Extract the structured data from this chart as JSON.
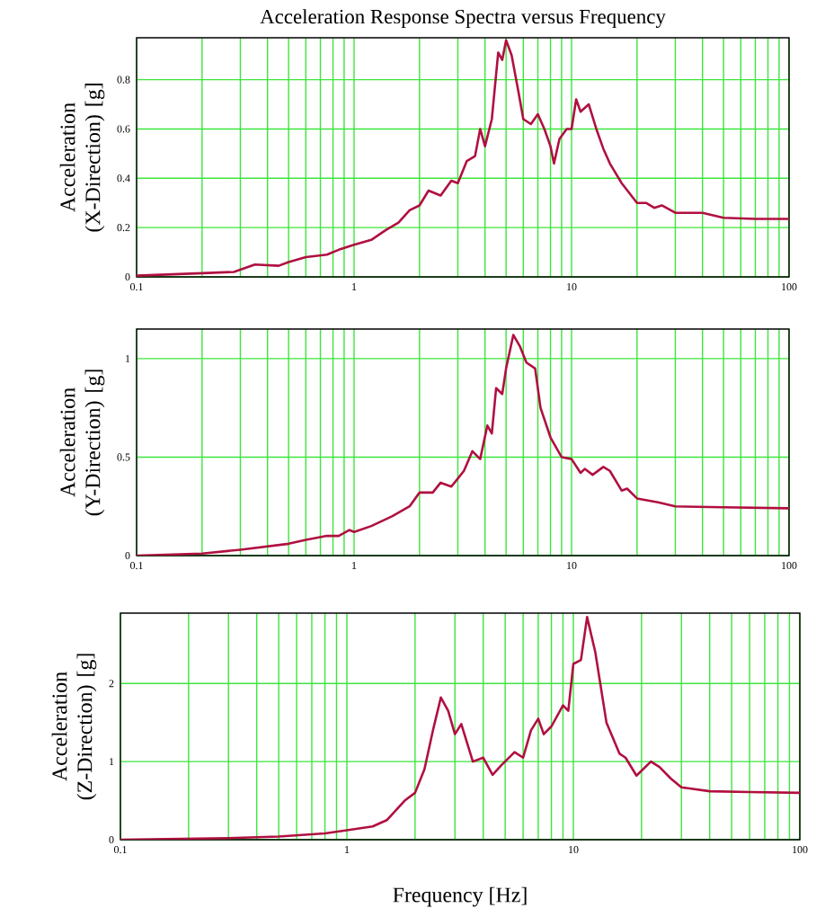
{
  "chart_data": [
    {
      "type": "line",
      "title": "Acceleration Response Spectra versus Frequency",
      "ylabel": "Acceleration (X-Direction) [g]",
      "log": "x",
      "grid": true,
      "xlim": [
        0.1,
        100
      ],
      "ylim": [
        0,
        0.97
      ],
      "xticks": [
        0.1,
        1,
        10,
        100
      ],
      "yticks": [
        0,
        0.2,
        0.4,
        0.6,
        0.8
      ],
      "series": [
        {
          "color": "#b01040",
          "x": [
            0.1,
            0.2,
            0.28,
            0.35,
            0.45,
            0.5,
            0.6,
            0.75,
            0.85,
            1.0,
            1.2,
            1.4,
            1.6,
            1.8,
            2.0,
            2.2,
            2.5,
            2.8,
            3.0,
            3.3,
            3.6,
            3.8,
            4.0,
            4.3,
            4.6,
            4.8,
            5.0,
            5.3,
            5.7,
            6.0,
            6.5,
            7.0,
            7.5,
            8.0,
            8.3,
            8.8,
            9.5,
            10.0,
            10.5,
            11.0,
            12.0,
            13.0,
            14.0,
            15,
            17,
            20,
            22,
            24,
            26,
            30,
            40,
            50,
            70,
            100
          ],
          "values": [
            0.005,
            0.015,
            0.02,
            0.05,
            0.045,
            0.06,
            0.08,
            0.09,
            0.11,
            0.13,
            0.15,
            0.19,
            0.22,
            0.27,
            0.29,
            0.35,
            0.33,
            0.39,
            0.38,
            0.47,
            0.49,
            0.6,
            0.53,
            0.64,
            0.91,
            0.88,
            0.96,
            0.9,
            0.75,
            0.64,
            0.62,
            0.66,
            0.6,
            0.53,
            0.46,
            0.56,
            0.6,
            0.6,
            0.72,
            0.67,
            0.7,
            0.6,
            0.52,
            0.46,
            0.38,
            0.3,
            0.3,
            0.28,
            0.29,
            0.26,
            0.26,
            0.24,
            0.235,
            0.235
          ]
        }
      ]
    },
    {
      "type": "line",
      "ylabel": "Acceleration (Y-Direction) [g]",
      "log": "x",
      "grid": true,
      "xlim": [
        0.1,
        100
      ],
      "ylim": [
        0,
        1.15
      ],
      "xticks": [
        0.1,
        1,
        10,
        100
      ],
      "yticks": [
        0,
        0.5,
        1
      ],
      "series": [
        {
          "color": "#b01040",
          "x": [
            0.1,
            0.2,
            0.3,
            0.5,
            0.6,
            0.75,
            0.85,
            0.95,
            1.0,
            1.2,
            1.5,
            1.8,
            2.0,
            2.3,
            2.5,
            2.8,
            3.2,
            3.5,
            3.8,
            4.1,
            4.3,
            4.5,
            4.8,
            5.0,
            5.4,
            5.8,
            6.2,
            6.8,
            7.2,
            8.0,
            9.0,
            10,
            11,
            11.5,
            12.5,
            14,
            15,
            17,
            18,
            20,
            25,
            30,
            50,
            100
          ],
          "values": [
            0,
            0.01,
            0.03,
            0.06,
            0.08,
            0.1,
            0.1,
            0.13,
            0.12,
            0.15,
            0.2,
            0.25,
            0.32,
            0.32,
            0.37,
            0.35,
            0.43,
            0.53,
            0.49,
            0.66,
            0.62,
            0.85,
            0.82,
            0.95,
            1.12,
            1.06,
            0.98,
            0.95,
            0.75,
            0.6,
            0.5,
            0.49,
            0.42,
            0.44,
            0.41,
            0.45,
            0.43,
            0.33,
            0.34,
            0.29,
            0.27,
            0.25,
            0.245,
            0.24
          ]
        }
      ]
    },
    {
      "type": "line",
      "xlabel": "Frequency [Hz]",
      "ylabel": "Acceleration (Z-Direction) [g]",
      "log": "x",
      "grid": true,
      "xlim": [
        0.1,
        100
      ],
      "ylim": [
        0,
        2.9
      ],
      "xticks": [
        0.1,
        1,
        10,
        100
      ],
      "yticks": [
        0,
        1,
        2
      ],
      "series": [
        {
          "color": "#b01040",
          "x": [
            0.1,
            0.3,
            0.5,
            0.8,
            1.0,
            1.3,
            1.5,
            1.8,
            2.0,
            2.2,
            2.4,
            2.6,
            2.8,
            3.0,
            3.2,
            3.6,
            4.0,
            4.4,
            4.8,
            5.5,
            6.0,
            6.5,
            7.0,
            7.4,
            8.0,
            9.0,
            9.5,
            10,
            10.8,
            11.5,
            12.5,
            14,
            16,
            17,
            19,
            22,
            24,
            27,
            30,
            40,
            60,
            100
          ],
          "values": [
            0,
            0.02,
            0.04,
            0.08,
            0.12,
            0.17,
            0.25,
            0.5,
            0.6,
            0.9,
            1.4,
            1.82,
            1.65,
            1.35,
            1.48,
            1.0,
            1.05,
            0.83,
            0.95,
            1.12,
            1.05,
            1.4,
            1.55,
            1.35,
            1.45,
            1.72,
            1.65,
            2.25,
            2.3,
            2.85,
            2.4,
            1.5,
            1.1,
            1.05,
            0.82,
            1.0,
            0.93,
            0.78,
            0.67,
            0.62,
            0.61,
            0.6
          ]
        }
      ]
    }
  ]
}
